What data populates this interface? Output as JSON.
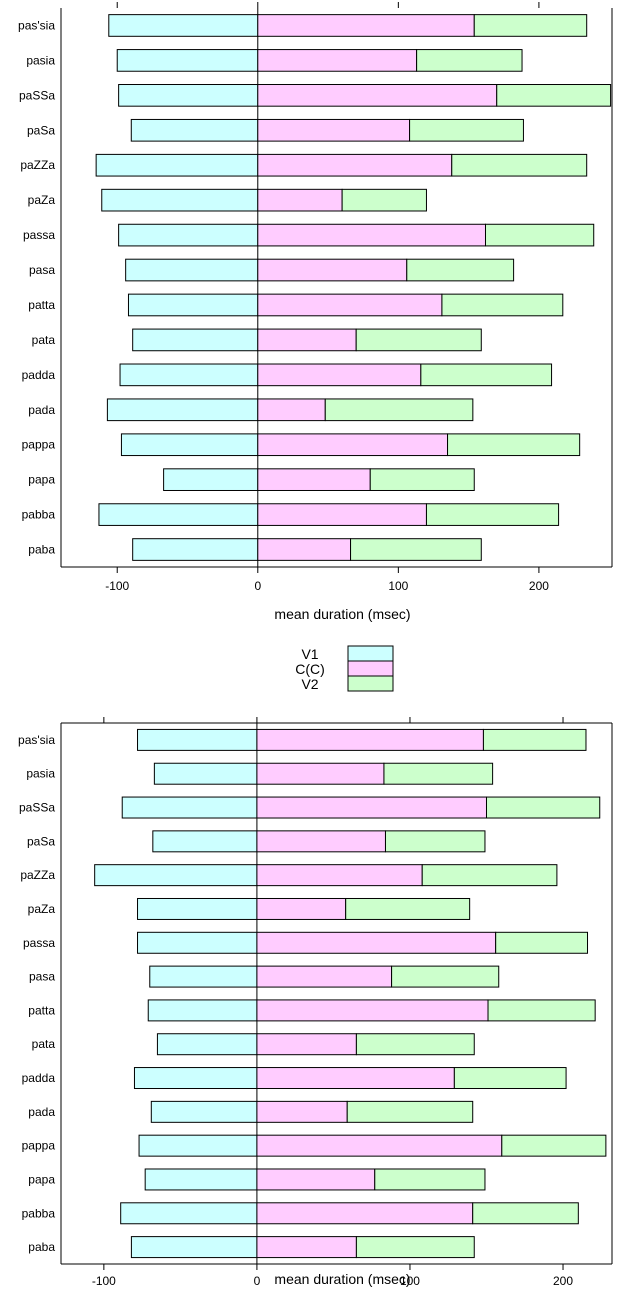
{
  "colors": {
    "v1": "#ccffff",
    "c": "#ffccff",
    "v2": "#ccffcc",
    "stroke": "#000000"
  },
  "legend": {
    "entries": [
      "V1",
      "C(C)",
      "V2"
    ]
  },
  "chart_data": [
    {
      "type": "bar",
      "orientation": "horizontal",
      "stacked": true,
      "categories": [
        "pas'sia",
        "pasia",
        "paSSa",
        "paSa",
        "paZZa",
        "paZa",
        "passa",
        "pasa",
        "patta",
        "pata",
        "padda",
        "pada",
        "pappa",
        "papa",
        "pabba",
        "paba"
      ],
      "series": [
        {
          "name": "V1",
          "values": [
            -106,
            -100,
            -99,
            -90,
            -115,
            -111,
            -99,
            -94,
            -92,
            -89,
            -98,
            -107,
            -97,
            -67,
            -113,
            -89
          ]
        },
        {
          "name": "C(C)",
          "values": [
            154,
            113,
            170,
            108,
            138,
            60,
            162,
            106,
            131,
            70,
            116,
            48,
            135,
            80,
            120,
            66
          ]
        },
        {
          "name": "V2",
          "values": [
            80,
            75,
            81,
            81,
            96,
            60,
            77,
            76,
            86,
            89,
            93,
            105,
            94,
            74,
            94,
            93
          ]
        }
      ],
      "xlabel": "mean duration (msec)",
      "xticks": [
        -100,
        0,
        100,
        200
      ],
      "xlim": [
        -140,
        252
      ]
    },
    {
      "type": "bar",
      "orientation": "horizontal",
      "stacked": true,
      "categories": [
        "pas'sia",
        "pasia",
        "paSSa",
        "paSa",
        "paZZa",
        "paZa",
        "passa",
        "pasa",
        "patta",
        "pata",
        "padda",
        "pada",
        "pappa",
        "papa",
        "pabba",
        "paba"
      ],
      "series": [
        {
          "name": "V1",
          "values": [
            -78,
            -67,
            -88,
            -68,
            -106,
            -78,
            -78,
            -70,
            -71,
            -65,
            -80,
            -69,
            -77,
            -73,
            -89,
            -82
          ]
        },
        {
          "name": "C(C)",
          "values": [
            148,
            83,
            150,
            84,
            108,
            58,
            156,
            88,
            151,
            65,
            129,
            59,
            160,
            77,
            141,
            65
          ]
        },
        {
          "name": "V2",
          "values": [
            67,
            71,
            74,
            65,
            88,
            81,
            60,
            70,
            70,
            77,
            73,
            82,
            68,
            72,
            69,
            77
          ]
        }
      ],
      "xlabel": "mean duration (msec)",
      "xticks": [
        -100,
        0,
        100,
        200
      ],
      "xlim": [
        -128,
        232
      ]
    }
  ]
}
